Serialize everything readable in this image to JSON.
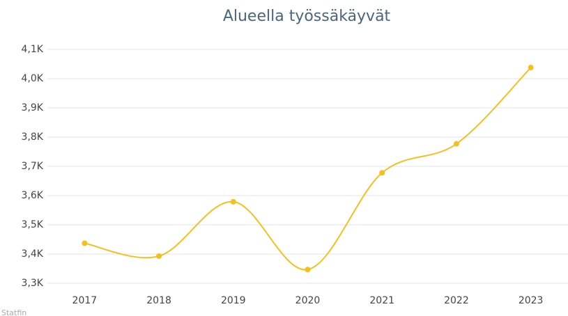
{
  "chart_data": {
    "type": "line",
    "title": "Alueella työssäkäyvät",
    "credit": "Statfin",
    "categories": [
      "2017",
      "2018",
      "2019",
      "2020",
      "2021",
      "2022",
      "2023"
    ],
    "series": [
      {
        "name": "Alueella työssäkäyvät",
        "color": "#f5c01e",
        "values": [
          3437,
          3393,
          3579,
          3347,
          3678,
          3777,
          4038
        ]
      }
    ],
    "ylim": [
      3300,
      4100
    ],
    "yticks": [
      {
        "value": 3300,
        "label": "3,3K"
      },
      {
        "value": 3400,
        "label": "3,4K"
      },
      {
        "value": 3500,
        "label": "3,5K"
      },
      {
        "value": 3600,
        "label": "3,6K"
      },
      {
        "value": 3700,
        "label": "3,7K"
      },
      {
        "value": 3800,
        "label": "3,8K"
      },
      {
        "value": 3900,
        "label": "3,9K"
      },
      {
        "value": 4000,
        "label": "4,0K"
      },
      {
        "value": 4100,
        "label": "4,1K"
      }
    ],
    "grid": true,
    "smooth": true
  }
}
